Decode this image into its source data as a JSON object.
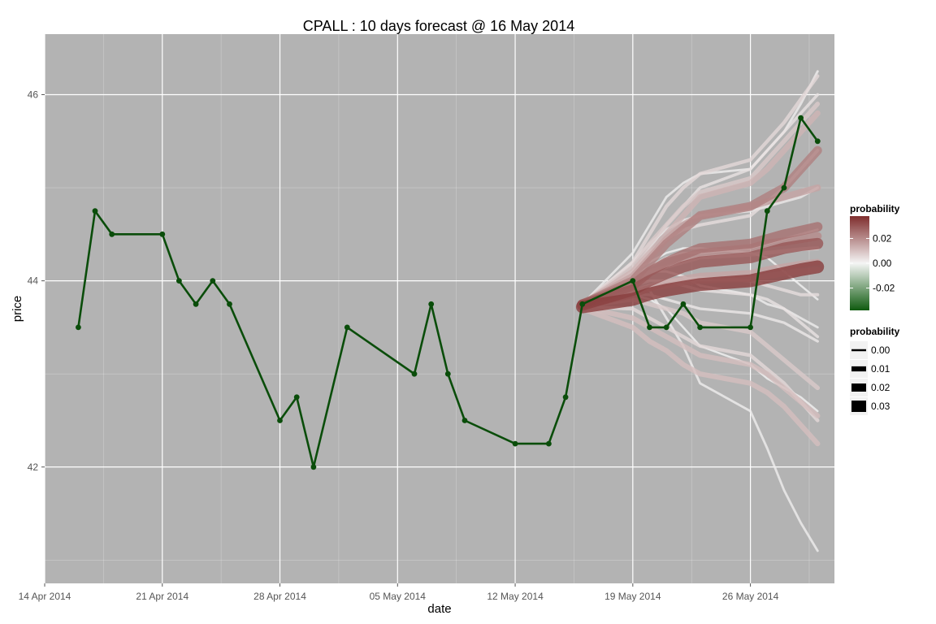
{
  "chart_data": {
    "type": "line",
    "title": "CPALL :  10  days forecast @  16 May 2014",
    "xlabel": "date",
    "ylabel": "price",
    "x_ticks": [
      "14 Apr 2014",
      "21 Apr 2014",
      "28 Apr 2014",
      "05 May 2014",
      "12 May 2014",
      "19 May 2014",
      "26 May 2014"
    ],
    "x_tick_dates": [
      "2014-04-14",
      "2014-04-21",
      "2014-04-28",
      "2014-05-05",
      "2014-05-12",
      "2014-05-19",
      "2014-05-26"
    ],
    "y_ticks": [
      42,
      44,
      46
    ],
    "xlim": [
      "2014-04-14",
      "2014-05-31"
    ],
    "ylim": [
      40.75,
      46.65
    ],
    "grid": true,
    "colors": {
      "panel": "#b3b3b3",
      "grid": "#ffffff",
      "actual": "#0a4d0a",
      "forecast_high": "#7f2d2d",
      "forecast_mid": "#f2f2f2",
      "forecast_low": "#1a5c1a"
    },
    "actual": {
      "dates": [
        "2014-04-16",
        "2014-04-17",
        "2014-04-18",
        "2014-04-21",
        "2014-04-22",
        "2014-04-23",
        "2014-04-24",
        "2014-04-25",
        "2014-04-28",
        "2014-04-29",
        "2014-04-30",
        "2014-05-02",
        "2014-05-06",
        "2014-05-07",
        "2014-05-08",
        "2014-05-09",
        "2014-05-12",
        "2014-05-14",
        "2014-05-15",
        "2014-05-16",
        "2014-05-19",
        "2014-05-20",
        "2014-05-21",
        "2014-05-22",
        "2014-05-23",
        "2014-05-26",
        "2014-05-27",
        "2014-05-28",
        "2014-05-29",
        "2014-05-30"
      ],
      "values": [
        43.5,
        44.75,
        44.5,
        44.5,
        44.0,
        43.75,
        44.0,
        43.75,
        42.5,
        42.75,
        42.0,
        43.5,
        43.0,
        43.75,
        43.0,
        42.5,
        42.25,
        42.25,
        42.75,
        43.75,
        44.0,
        43.5,
        43.5,
        43.75,
        43.5,
        43.5,
        44.75,
        45.0,
        45.75,
        45.5
      ]
    },
    "forecast": {
      "dates": [
        "2014-05-16",
        "2014-05-19",
        "2014-05-20",
        "2014-05-21",
        "2014-05-22",
        "2014-05-23",
        "2014-05-26",
        "2014-05-27",
        "2014-05-28",
        "2014-05-29",
        "2014-05-30"
      ],
      "paths": [
        {
          "probability": 0.035,
          "values": [
            43.72,
            43.8,
            43.86,
            43.9,
            43.93,
            43.96,
            44.0,
            44.04,
            44.08,
            44.12,
            44.15
          ]
        },
        {
          "probability": 0.03,
          "values": [
            43.74,
            43.9,
            44.0,
            44.08,
            44.15,
            44.2,
            44.25,
            44.3,
            44.35,
            44.38,
            44.4
          ]
        },
        {
          "probability": 0.025,
          "values": [
            43.75,
            43.95,
            44.1,
            44.2,
            44.28,
            44.35,
            44.4,
            44.45,
            44.5,
            44.54,
            44.58
          ]
        },
        {
          "probability": 0.022,
          "values": [
            43.75,
            44.0,
            44.2,
            44.4,
            44.55,
            44.7,
            44.8,
            44.9,
            45.0,
            45.2,
            45.4
          ]
        },
        {
          "probability": 0.02,
          "values": [
            43.75,
            43.98,
            44.1,
            44.2,
            44.25,
            44.3,
            44.35,
            44.4,
            44.42,
            44.45,
            44.48
          ]
        },
        {
          "probability": 0.015,
          "values": [
            43.73,
            43.85,
            43.92,
            43.98,
            44.02,
            44.05,
            44.08,
            44.12,
            44.15,
            44.18,
            44.2
          ]
        },
        {
          "probability": 0.015,
          "values": [
            43.75,
            44.05,
            44.25,
            44.45,
            44.6,
            44.7,
            44.8,
            44.85,
            44.9,
            44.95,
            45.0
          ]
        },
        {
          "probability": 0.012,
          "values": [
            43.75,
            44.1,
            44.3,
            44.5,
            44.7,
            44.9,
            45.05,
            45.2,
            45.4,
            45.6,
            45.8
          ]
        },
        {
          "probability": 0.012,
          "values": [
            43.72,
            43.9,
            43.92,
            43.95,
            43.98,
            44.0,
            44.02,
            44.05,
            44.08,
            44.1,
            44.12
          ]
        },
        {
          "probability": 0.01,
          "values": [
            43.7,
            43.5,
            43.35,
            43.25,
            43.1,
            43.0,
            42.9,
            42.8,
            42.65,
            42.45,
            42.25
          ]
        },
        {
          "probability": 0.01,
          "values": [
            43.72,
            43.6,
            43.5,
            43.4,
            43.3,
            43.2,
            43.1,
            43.0,
            42.85,
            42.7,
            42.55
          ]
        },
        {
          "probability": 0.008,
          "values": [
            43.75,
            44.15,
            44.4,
            44.6,
            44.8,
            44.95,
            45.1,
            45.3,
            45.5,
            45.7,
            45.9
          ]
        },
        {
          "probability": 0.008,
          "values": [
            43.73,
            43.8,
            43.75,
            43.7,
            43.65,
            43.55,
            43.45,
            43.3,
            43.15,
            43.0,
            42.85
          ]
        },
        {
          "probability": 0.006,
          "values": [
            43.74,
            44.0,
            44.1,
            44.15,
            44.2,
            44.25,
            44.28,
            44.3,
            44.32,
            44.34,
            44.35
          ]
        },
        {
          "probability": 0.005,
          "values": [
            43.75,
            44.2,
            44.5,
            44.8,
            45.0,
            45.15,
            45.3,
            45.5,
            45.7,
            45.95,
            46.2
          ]
        },
        {
          "probability": 0.005,
          "values": [
            43.72,
            43.7,
            43.6,
            43.5,
            43.4,
            43.3,
            43.2,
            43.05,
            42.9,
            42.7,
            42.5
          ]
        },
        {
          "probability": 0.004,
          "values": [
            43.75,
            44.1,
            44.3,
            44.45,
            44.55,
            44.6,
            44.7,
            44.85,
            45.0,
            45.2,
            45.4
          ]
        },
        {
          "probability": 0.004,
          "values": [
            43.73,
            43.9,
            43.95,
            44.0,
            44.02,
            44.03,
            44.0,
            43.95,
            43.9,
            43.85,
            43.85
          ]
        },
        {
          "probability": 0.003,
          "values": [
            43.75,
            44.1,
            44.35,
            44.6,
            44.8,
            45.0,
            45.2,
            45.4,
            45.6,
            45.8,
            46.0
          ]
        },
        {
          "probability": 0.003,
          "values": [
            43.74,
            43.95,
            44.0,
            44.0,
            43.95,
            43.9,
            43.85,
            43.8,
            43.7,
            43.55,
            43.4
          ]
        },
        {
          "probability": 0.002,
          "values": [
            43.75,
            44.2,
            44.4,
            44.55,
            44.65,
            44.7,
            44.75,
            44.8,
            44.85,
            44.9,
            45.0
          ]
        },
        {
          "probability": 0.002,
          "values": [
            43.73,
            43.85,
            43.85,
            43.8,
            43.75,
            43.7,
            43.65,
            43.6,
            43.55,
            43.45,
            43.35
          ]
        },
        {
          "probability": 0.001,
          "values": [
            43.75,
            44.3,
            44.6,
            44.9,
            45.05,
            45.15,
            45.2,
            45.4,
            45.6,
            45.9,
            46.25
          ]
        },
        {
          "probability": 0.001,
          "values": [
            43.74,
            43.95,
            43.9,
            43.6,
            43.3,
            42.9,
            42.6,
            42.2,
            41.75,
            41.4,
            41.1
          ]
        },
        {
          "probability": 0.001,
          "values": [
            43.74,
            44.0,
            44.1,
            44.1,
            44.05,
            43.95,
            43.85,
            43.75,
            43.7,
            43.6,
            43.5
          ]
        },
        {
          "probability": 0.001,
          "values": [
            43.75,
            44.05,
            44.15,
            44.25,
            44.3,
            44.3,
            44.35,
            44.4,
            44.45,
            44.5,
            44.55
          ]
        },
        {
          "probability": 0.0,
          "values": [
            43.74,
            43.85,
            43.8,
            43.7,
            43.5,
            43.3,
            43.1,
            42.95,
            42.85,
            42.75,
            42.6
          ]
        },
        {
          "probability": 0.0,
          "values": [
            43.75,
            44.1,
            44.2,
            44.3,
            44.35,
            44.35,
            44.3,
            44.25,
            44.1,
            43.95,
            43.8
          ]
        }
      ]
    },
    "legend_color": {
      "title": "probability",
      "labels": [
        "0.02",
        "0.00",
        "-0.02"
      ],
      "values": [
        0.02,
        0.0,
        -0.02
      ],
      "range": [
        -0.038,
        0.038
      ],
      "placement": "right"
    },
    "legend_size": {
      "title": "probability",
      "labels": [
        "0.00",
        "0.01",
        "0.02",
        "0.03"
      ],
      "values": [
        0.0,
        0.01,
        0.02,
        0.03
      ],
      "placement": "right"
    }
  }
}
